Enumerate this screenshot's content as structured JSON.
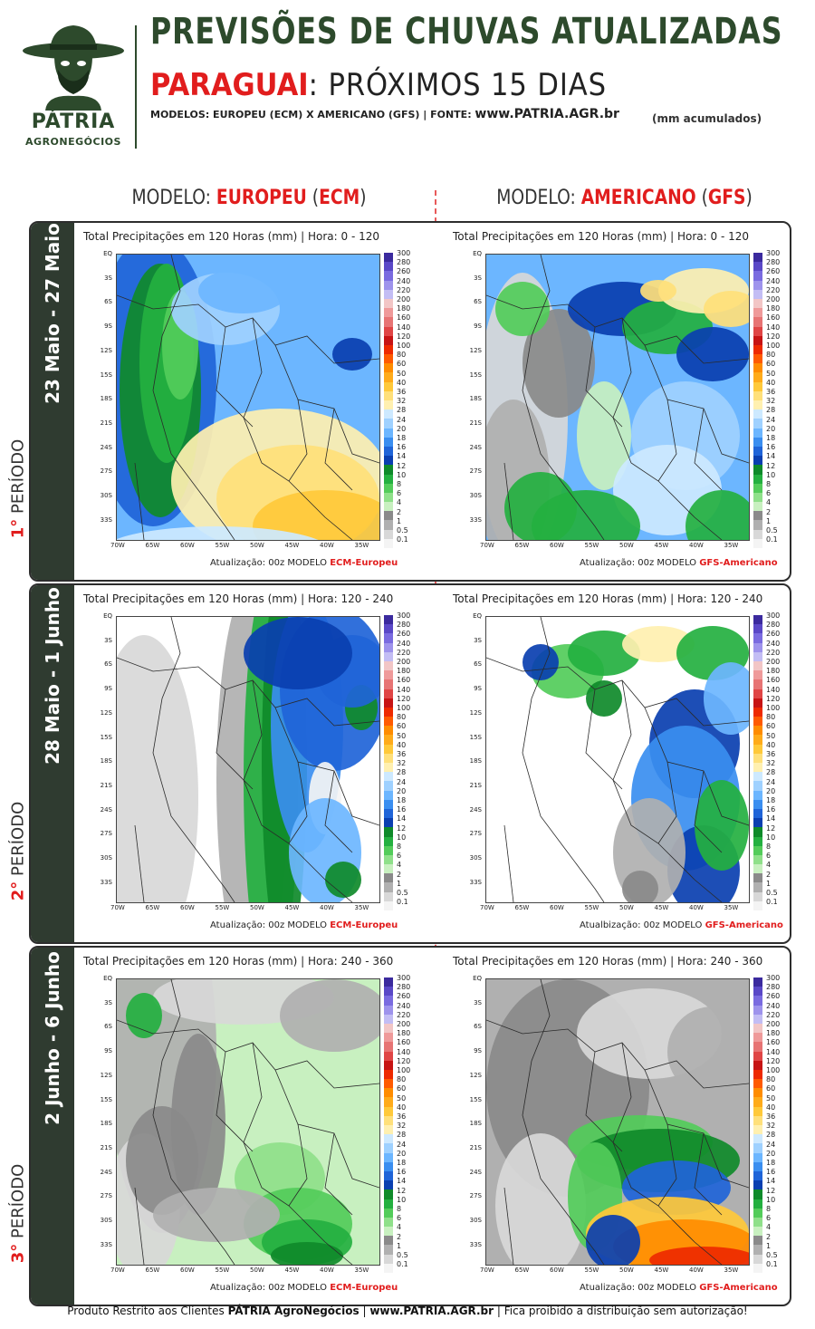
{
  "brand": {
    "name": "PÁTRIA",
    "sub": "AGRONEGÓCIOS"
  },
  "header": {
    "title": "PREVISÕES DE CHUVAS ATUALIZADAS",
    "country": "PARAGUAI",
    "country_rest": ": PRÓXIMOS 15 DIAS",
    "models_prefix": "MODELOS: EUROPEU (ECM) X AMERICANO (GFS)  |  FONTE: ",
    "site": "www.PATRIA.AGR.br",
    "units": "(mm acumulados)"
  },
  "columns": {
    "left_prefix": "MODELO: ",
    "left_name": "EUROPEU",
    "left_code": "ECM",
    "right_prefix": "MODELO: ",
    "right_name": "AMERICANO",
    "right_code": "GFS"
  },
  "colorbar_labels": [
    "300",
    "280",
    "260",
    "240",
    "220",
    "200",
    "180",
    "160",
    "140",
    "120",
    "100",
    "80",
    "60",
    "50",
    "40",
    "36",
    "32",
    "28",
    "24",
    "20",
    "18",
    "16",
    "14",
    "12",
    "10",
    "8",
    "6",
    "4",
    "2",
    "1",
    "0.5",
    "0.1"
  ],
  "colorbar_colors": [
    "#3b2a9e",
    "#5a48c7",
    "#7a6be0",
    "#9e93ec",
    "#c3bdf4",
    "#f2c6c6",
    "#ef9a9a",
    "#e77474",
    "#e04545",
    "#c71414",
    "#ee2a00",
    "#ff5a00",
    "#ff8c00",
    "#ffab1a",
    "#ffc93a",
    "#ffe07a",
    "#fff0b0",
    "#cde9ff",
    "#9fd1ff",
    "#6cb6ff",
    "#3a8ef0",
    "#1f64d8",
    "#0a3fb0",
    "#0f8a2a",
    "#24b040",
    "#53cc5a",
    "#8fe08a",
    "#c8f0c0",
    "#8a8a8a",
    "#b0b0b0",
    "#d8d8d8",
    "#f4f4f4"
  ],
  "lat_labels": [
    "EQ",
    "3S",
    "6S",
    "9S",
    "12S",
    "15S",
    "18S",
    "21S",
    "24S",
    "27S",
    "30S",
    "33S"
  ],
  "lon_labels": [
    "70W",
    "65W",
    "60W",
    "55W",
    "50W",
    "45W",
    "40W",
    "35W"
  ],
  "periods": [
    {
      "date": "23 Maio - 27 Maio",
      "num": "1°",
      "label": " PERÍODO",
      "ecm": {
        "title": "Total Precipitações em 120 Horas (mm)   |   Hora: 0 - 120",
        "upd": "Atualização: 00z MODELO ",
        "model": "ECM-Europeu"
      },
      "gfs": {
        "title": "Total Precipitações em 120 Horas (mm)   |   Hora: 0 - 120",
        "upd": "Atualização: 00z MODELO ",
        "model": "GFS-Americano"
      }
    },
    {
      "date": "28 Maio - 1 Junho",
      "num": "2°",
      "label": " PERÍODO",
      "ecm": {
        "title": "Total Precipitações em 120 Horas (mm)   |   Hora: 120 - 240",
        "upd": "Atualização: 00z MODELO ",
        "model": "ECM-Europeu"
      },
      "gfs": {
        "title": "Total Precipitações em 120 Horas (mm)   |   Hora: 120 - 240",
        "upd": "Atualbização: 00z MODELO ",
        "model": "GFS-Americano"
      }
    },
    {
      "date": "2 Junho - 6 Junho",
      "num": "3°",
      "label": " PERÍODO",
      "ecm": {
        "title": "Total Precipitações em 120 Horas (mm)   |   Hora: 240 - 360",
        "upd": "Atualização: 00z MODELO ",
        "model": "ECM-Europeu"
      },
      "gfs": {
        "title": "Total Precipitações em 120 Horas (mm)   |   Hora: 240 - 360",
        "upd": "Atualização: 00z MODELO ",
        "model": "GFS-Americano"
      }
    }
  ],
  "footer": {
    "a": "Produto Restrito aos Clientes ",
    "b": "PÁTRIA AgroNegócios",
    "c": " | ",
    "d": "www.PATRIA.AGR.br",
    "e": " | Fica proibido a distribuição sem autorização!"
  }
}
